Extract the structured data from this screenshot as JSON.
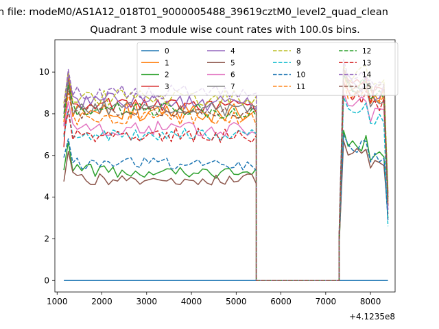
{
  "window": {
    "suptitle": "n file: modeM0/AS1A12_018T01_9000005488_39619cztM0_level2_quad_clean"
  },
  "chart_data": {
    "type": "line",
    "title": "Quadrant 3 module wise count rates with 100.0s bins.",
    "xlabel": "",
    "ylabel": "",
    "x_offset_label": "+4.1235e8",
    "xlim": [
      950,
      8550
    ],
    "ylim": [
      -0.55,
      11.55
    ],
    "xticks": [
      1000,
      2000,
      3000,
      4000,
      5000,
      6000,
      7000,
      8000
    ],
    "yticks": [
      0,
      2,
      4,
      6,
      8,
      10
    ],
    "legend_position": "upper-center",
    "legend_columns": 4,
    "grid": false,
    "segments": {
      "seg1_x": [
        1150,
        1250,
        1350,
        1450,
        1550,
        1650,
        1750,
        1850,
        1950,
        2050,
        2150,
        2250,
        2350,
        2450,
        2550,
        2650,
        2750,
        2850,
        2950,
        3050,
        3150,
        3250,
        3350,
        3450,
        3550,
        3650,
        3750,
        3850,
        3950,
        4050,
        4150,
        4250,
        4350,
        4450,
        4550,
        4650,
        4750,
        4850,
        4950,
        5050,
        5150,
        5250,
        5350,
        5450
      ],
      "gap_x": [
        5450,
        5500,
        7250,
        7300
      ],
      "seg2_x": [
        7300,
        7400,
        7500,
        7600,
        7700,
        7800,
        7900,
        8000,
        8100,
        8200,
        8300,
        8390
      ]
    },
    "series": [
      {
        "name": "0",
        "color": "#1f77b4",
        "dash": "solid",
        "base1": 0.0,
        "start": 0.0,
        "amp": 0.0,
        "base2": 0.0,
        "end": 0.0,
        "flat": true
      },
      {
        "name": "1",
        "color": "#ff7f0e",
        "dash": "solid",
        "base1": 8.1,
        "start": 7.6,
        "amp": 0.45,
        "base2": 9.4,
        "end": 3.9
      },
      {
        "name": "2",
        "color": "#2ca02c",
        "dash": "solid",
        "base1": 5.3,
        "start": 5.3,
        "amp": 0.35,
        "base2": 6.6,
        "end": 3.0
      },
      {
        "name": "3",
        "color": "#d62728",
        "dash": "solid",
        "base1": 8.4,
        "start": 6.4,
        "amp": 0.35,
        "base2": 9.4,
        "end": 4.2
      },
      {
        "name": "4",
        "color": "#9467bd",
        "dash": "solid",
        "base1": 8.6,
        "start": 7.4,
        "amp": 0.4,
        "base2": 9.5,
        "end": 4.0
      },
      {
        "name": "5",
        "color": "#8c564b",
        "dash": "solid",
        "base1": 4.9,
        "start": 4.75,
        "amp": 0.3,
        "base2": 6.1,
        "end": 3.2
      },
      {
        "name": "6",
        "color": "#e377c2",
        "dash": "solid",
        "base1": 7.3,
        "start": 7.4,
        "amp": 0.35,
        "base2": 8.4,
        "end": 3.4
      },
      {
        "name": "7",
        "color": "#7f7f7f",
        "dash": "solid",
        "base1": 8.3,
        "start": 8.0,
        "amp": 0.35,
        "base2": 9.2,
        "end": 3.6
      },
      {
        "name": "8",
        "color": "#bcbd22",
        "dash": "dashed",
        "base1": 8.8,
        "start": 8.5,
        "amp": 0.4,
        "base2": 9.8,
        "end": 4.3
      },
      {
        "name": "9",
        "color": "#17becf",
        "dash": "dashed",
        "base1": 7.0,
        "start": 6.9,
        "amp": 0.3,
        "base2": 8.2,
        "end": 2.6
      },
      {
        "name": "10",
        "color": "#1f77b4",
        "dash": "dashed",
        "base1": 5.6,
        "start": 5.9,
        "amp": 0.3,
        "base2": 6.4,
        "end": 2.9
      },
      {
        "name": "11",
        "color": "#ff7f0e",
        "dash": "dashed",
        "base1": 7.8,
        "start": 7.6,
        "amp": 0.35,
        "base2": 9.0,
        "end": 3.6
      },
      {
        "name": "12",
        "color": "#2ca02c",
        "dash": "dashed",
        "base1": 8.2,
        "start": 7.8,
        "amp": 0.35,
        "base2": 9.3,
        "end": 4.0
      },
      {
        "name": "13",
        "color": "#d62728",
        "dash": "dashed",
        "base1": 7.0,
        "start": 7.0,
        "amp": 0.35,
        "base2": 8.9,
        "end": 3.6
      },
      {
        "name": "14",
        "color": "#9467bd",
        "dash": "dashed",
        "base1": 9.0,
        "start": 8.3,
        "amp": 0.4,
        "base2": 10.0,
        "end": 3.4
      },
      {
        "name": "15",
        "color": "#8c564b",
        "dash": "dashed",
        "base1": 8.1,
        "start": 8.3,
        "amp": 0.35,
        "base2": 9.6,
        "end": 3.7
      }
    ]
  }
}
